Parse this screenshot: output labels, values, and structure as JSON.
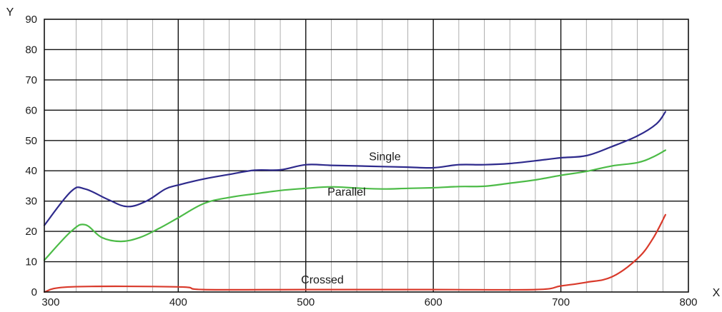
{
  "chart_data": {
    "type": "line",
    "title": "",
    "xlabel": "X",
    "ylabel": "Y",
    "xlim": [
      295,
      800
    ],
    "ylim": [
      0,
      90
    ],
    "x_ticks": [
      "300",
      "400",
      "500",
      "600",
      "700",
      "800"
    ],
    "y_ticks": [
      "0",
      "10",
      "20",
      "30",
      "40",
      "50",
      "60",
      "70",
      "80",
      "90"
    ],
    "grid": true,
    "legend": "none",
    "series": [
      {
        "name": "Single",
        "color": "#2e2a8c",
        "points": [
          [
            295,
            22
          ],
          [
            316,
            33.2
          ],
          [
            327,
            34
          ],
          [
            345,
            30.5
          ],
          [
            360,
            28.2
          ],
          [
            375,
            30
          ],
          [
            390,
            34
          ],
          [
            400,
            35.3
          ],
          [
            420,
            37.3
          ],
          [
            440,
            38.8
          ],
          [
            460,
            40.2
          ],
          [
            480,
            40.3
          ],
          [
            500,
            42
          ],
          [
            520,
            41.8
          ],
          [
            540,
            41.6
          ],
          [
            560,
            41.4
          ],
          [
            580,
            41.2
          ],
          [
            600,
            41
          ],
          [
            620,
            42
          ],
          [
            640,
            42
          ],
          [
            660,
            42.4
          ],
          [
            680,
            43.3
          ],
          [
            700,
            44.3
          ],
          [
            720,
            45
          ],
          [
            740,
            48
          ],
          [
            760,
            51.5
          ],
          [
            775,
            55.5
          ],
          [
            782,
            59.5
          ]
        ]
      },
      {
        "name": "Parallel",
        "color": "#4cbb47",
        "points": [
          [
            295,
            10.5
          ],
          [
            316,
            20
          ],
          [
            327,
            22.2
          ],
          [
            340,
            18
          ],
          [
            355,
            16.7
          ],
          [
            370,
            18
          ],
          [
            385,
            21
          ],
          [
            400,
            24.5
          ],
          [
            420,
            29.2
          ],
          [
            440,
            31.2
          ],
          [
            460,
            32.4
          ],
          [
            480,
            33.5
          ],
          [
            500,
            34.2
          ],
          [
            520,
            34.7
          ],
          [
            540,
            34.3
          ],
          [
            560,
            34
          ],
          [
            580,
            34.2
          ],
          [
            600,
            34.4
          ],
          [
            620,
            34.8
          ],
          [
            640,
            34.9
          ],
          [
            660,
            35.9
          ],
          [
            680,
            37
          ],
          [
            700,
            38.5
          ],
          [
            720,
            39.8
          ],
          [
            740,
            41.6
          ],
          [
            760,
            42.7
          ],
          [
            772,
            44.5
          ],
          [
            782,
            46.8
          ]
        ]
      },
      {
        "name": "Crossed",
        "color": "#d93a2b",
        "points": [
          [
            295,
            0
          ],
          [
            316,
            1.7
          ],
          [
            400,
            1.7
          ],
          [
            420,
            0.8
          ],
          [
            500,
            0.8
          ],
          [
            600,
            0.8
          ],
          [
            680,
            0.8
          ],
          [
            700,
            2
          ],
          [
            720,
            3.2
          ],
          [
            740,
            5
          ],
          [
            760,
            11
          ],
          [
            772,
            17.5
          ],
          [
            782,
            25.5
          ]
        ]
      }
    ],
    "annotations": [
      {
        "text": "Single",
        "x": 562,
        "y": 43.5,
        "series": "Single"
      },
      {
        "text": "Parallel",
        "x": 532,
        "y": 31.8,
        "series": "Parallel"
      },
      {
        "text": "Crossed",
        "x": 513,
        "y": 2.8,
        "series": "Crossed"
      }
    ]
  }
}
